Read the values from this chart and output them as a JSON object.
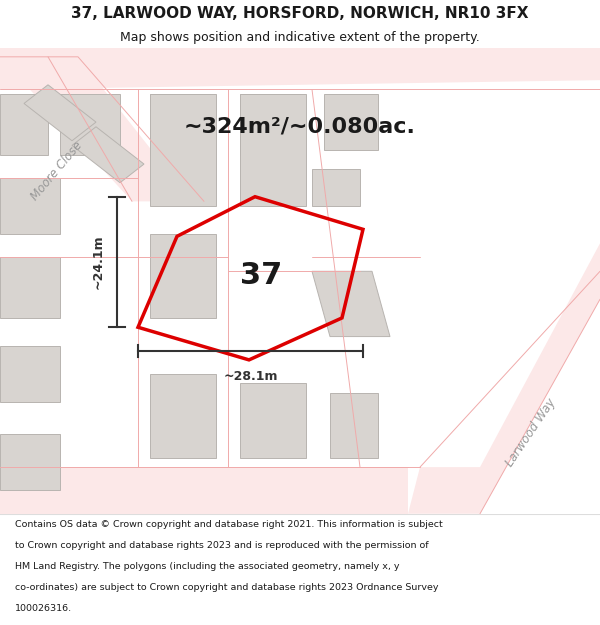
{
  "title_line1": "37, LARWOOD WAY, HORSFORD, NORWICH, NR10 3FX",
  "title_line2": "Map shows position and indicative extent of the property.",
  "area_label": "~324m²/~0.080ac.",
  "plot_number": "37",
  "dim_height": "~24.1m",
  "dim_width": "~28.1m",
  "road_label_left": "Moore Close",
  "road_label_right": "Larwood Way",
  "footer_lines": [
    "Contains OS data © Crown copyright and database right 2021. This information is subject",
    "to Crown copyright and database rights 2023 and is reproduced with the permission of",
    "HM Land Registry. The polygons (including the associated geometry, namely x, y",
    "co-ordinates) are subject to Crown copyright and database rights 2023 Ordnance Survey",
    "100026316."
  ],
  "bg_color": "#f5f3f0",
  "building_fill": "#d8d4d0",
  "building_stroke": "#b8b4b0",
  "road_line": "#f0aaaa",
  "highlight_color": "#dd0000",
  "dim_color": "#333333",
  "text_color": "#1a1a1a",
  "road_text_color": "#999999",
  "title_fontsize": 11,
  "subtitle_fontsize": 9,
  "area_fontsize": 16,
  "plot_num_fontsize": 22,
  "dim_fontsize": 9,
  "road_fontsize": 8.5,
  "footer_fontsize": 6.8
}
